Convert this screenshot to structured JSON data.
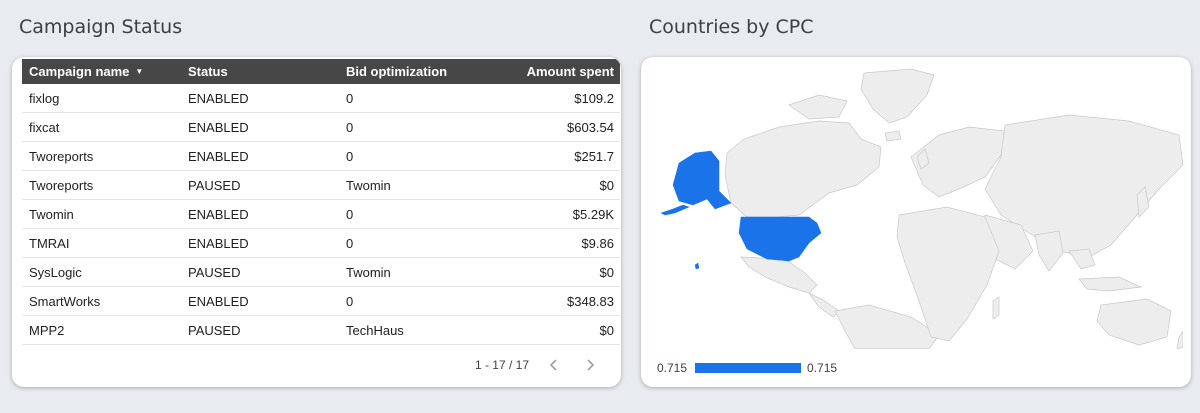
{
  "left_panel": {
    "title": "Campaign Status",
    "columns": [
      "Campaign name",
      "Status",
      "Bid optimization",
      "Amount spent"
    ],
    "rows": [
      {
        "name": "fixlog",
        "status": "ENABLED",
        "bid": "0",
        "amount": "$109.2"
      },
      {
        "name": "fixcat",
        "status": "ENABLED",
        "bid": "0",
        "amount": "$603.54"
      },
      {
        "name": "Tworeports",
        "status": "ENABLED",
        "bid": "0",
        "amount": "$251.7"
      },
      {
        "name": "Tworeports",
        "status": "PAUSED",
        "bid": "Twomin",
        "amount": "$0"
      },
      {
        "name": "Twomin",
        "status": "ENABLED",
        "bid": "0",
        "amount": "$5.29K"
      },
      {
        "name": "TMRAI",
        "status": "ENABLED",
        "bid": "0",
        "amount": "$9.86"
      },
      {
        "name": "SysLogic",
        "status": "PAUSED",
        "bid": "Twomin",
        "amount": "$0"
      },
      {
        "name": "SmartWorks",
        "status": "ENABLED",
        "bid": "0",
        "amount": "$348.83"
      },
      {
        "name": "MPP2",
        "status": "PAUSED",
        "bid": "TechHaus",
        "amount": "$0"
      }
    ],
    "pagination": "1 - 17 / 17"
  },
  "right_panel": {
    "title": "Countries by CPC",
    "legend_min": "0.715",
    "legend_max": "0.715"
  },
  "colors": {
    "header_bg": "#474747",
    "highlight": "#1a73e8",
    "land": "#ededed",
    "land_border": "#c8c8c8"
  },
  "icons": {
    "sort": "sort-descending-icon",
    "prev": "chevron-left-icon",
    "next": "chevron-right-icon"
  }
}
